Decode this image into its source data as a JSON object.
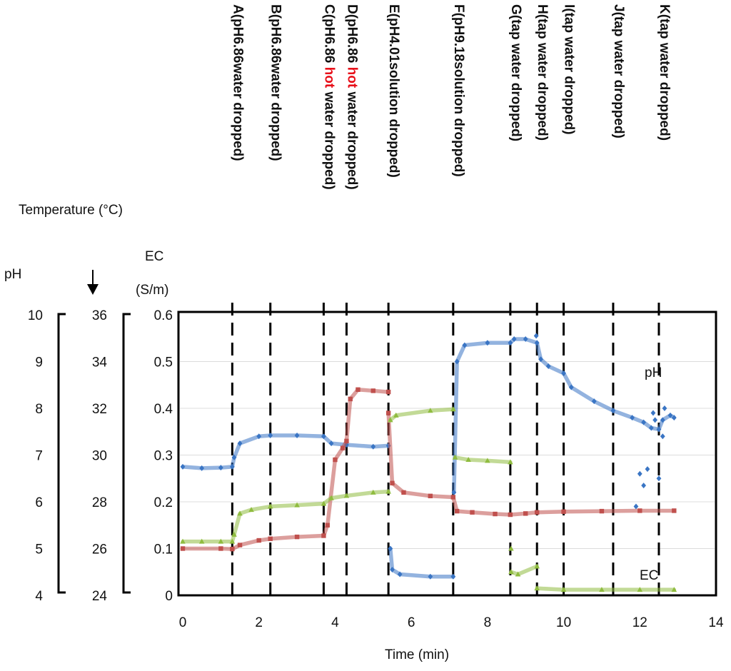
{
  "chart_data": {
    "type": "scatter",
    "xlabel": "Time (min)",
    "xlim": [
      0,
      14
    ],
    "x_ticks": [
      "0",
      "2",
      "4",
      "6",
      "8",
      "10",
      "12",
      "14"
    ],
    "axes": {
      "ph": {
        "label": "pH",
        "range": [
          4,
          10
        ],
        "ticks": [
          "4",
          "5",
          "6",
          "7",
          "8",
          "9",
          "10"
        ]
      },
      "temperature": {
        "label": "Temperature (°C)",
        "range": [
          24,
          36
        ],
        "ticks": [
          "24",
          "26",
          "28",
          "30",
          "32",
          "34",
          "36"
        ]
      },
      "ec": {
        "label_line1": "EC",
        "label_line2": "(S/m)",
        "range": [
          0,
          0.6
        ],
        "ticks": [
          "0",
          "0.1",
          "0.2",
          "0.3",
          "0.4",
          "0.5",
          "0.6"
        ]
      }
    },
    "series_labels": {
      "ph": "pH",
      "ec": "EC"
    },
    "events": [
      {
        "t": 1.3,
        "id": "A",
        "text": "A(pH6.86water dropped)"
      },
      {
        "t": 2.3,
        "id": "B",
        "text": "B(pH6.86water dropped)"
      },
      {
        "t": 3.7,
        "id": "C",
        "pre": "C(pH6.86 ",
        "hot": "hot",
        "post": " water dropped)"
      },
      {
        "t": 4.3,
        "id": "D",
        "pre": "D(pH6.86 ",
        "hot": "hot",
        "post": " water dropped)"
      },
      {
        "t": 5.4,
        "id": "E",
        "text": "E(pH4.01solution dropped)"
      },
      {
        "t": 7.1,
        "id": "F",
        "text": "F(pH9.18solution dropped)"
      },
      {
        "t": 8.6,
        "id": "G",
        "text": "G(tap water dropped)"
      },
      {
        "t": 9.3,
        "id": "H",
        "text": "H(tap water dropped)"
      },
      {
        "t": 10.0,
        "id": "I",
        "text": "I(tap water dropped)"
      },
      {
        "t": 11.3,
        "id": "J",
        "text": "J(tap water dropped)"
      },
      {
        "t": 12.5,
        "id": "K",
        "text": "K(tap water dropped)"
      }
    ],
    "series": [
      {
        "name": "pH",
        "axis": "ph",
        "color": "#3a75c4",
        "marker": "diamond",
        "segments": [
          [
            [
              0,
              6.75
            ],
            [
              0.5,
              6.72
            ],
            [
              1.0,
              6.73
            ],
            [
              1.3,
              6.75
            ],
            [
              1.35,
              6.95
            ],
            [
              1.5,
              7.25
            ],
            [
              2.0,
              7.4
            ],
            [
              2.3,
              7.42
            ],
            [
              3.0,
              7.42
            ],
            [
              3.7,
              7.4
            ],
            [
              3.9,
              7.25
            ],
            [
              4.3,
              7.22
            ],
            [
              5.0,
              7.18
            ],
            [
              5.4,
              7.2
            ]
          ],
          [
            [
              5.45,
              5.0
            ],
            [
              5.5,
              4.55
            ],
            [
              5.7,
              4.45
            ],
            [
              6.5,
              4.4
            ],
            [
              7.1,
              4.4
            ]
          ],
          [
            [
              7.12,
              6.2
            ],
            [
              7.2,
              9.0
            ],
            [
              7.4,
              9.35
            ],
            [
              8.0,
              9.4
            ],
            [
              8.6,
              9.4
            ],
            [
              8.7,
              9.48
            ],
            [
              9.0,
              9.48
            ],
            [
              9.3,
              9.4
            ],
            [
              9.4,
              9.05
            ],
            [
              9.6,
              8.9
            ],
            [
              10.0,
              8.75
            ],
            [
              10.2,
              8.45
            ],
            [
              10.8,
              8.15
            ],
            [
              11.3,
              7.95
            ],
            [
              11.8,
              7.8
            ],
            [
              12.1,
              7.7
            ],
            [
              12.3,
              7.58
            ],
            [
              12.5,
              7.55
            ],
            [
              12.6,
              7.75
            ],
            [
              12.8,
              7.85
            ],
            [
              12.9,
              7.8
            ]
          ]
        ],
        "scatter": [
          [
            9.28,
            9.55
          ],
          [
            11.9,
            5.9
          ],
          [
            12.0,
            6.6
          ],
          [
            12.1,
            6.35
          ],
          [
            12.2,
            6.7
          ],
          [
            12.35,
            7.9
          ],
          [
            12.4,
            7.75
          ],
          [
            12.5,
            6.5
          ],
          [
            12.6,
            7.4
          ],
          [
            12.65,
            8.0
          ]
        ]
      },
      {
        "name": "Temperature",
        "axis": "temperature",
        "color": "#c0504d",
        "marker": "square",
        "segments": [
          [
            [
              0,
              26.0
            ],
            [
              1.0,
              26.0
            ],
            [
              1.3,
              25.98
            ],
            [
              1.5,
              26.15
            ],
            [
              2.0,
              26.35
            ],
            [
              2.3,
              26.42
            ],
            [
              3.0,
              26.5
            ],
            [
              3.7,
              26.55
            ],
            [
              3.8,
              27.0
            ],
            [
              4.0,
              29.8
            ],
            [
              4.2,
              30.3
            ],
            [
              4.3,
              30.6
            ],
            [
              4.4,
              32.4
            ],
            [
              4.6,
              32.8
            ],
            [
              5.0,
              32.75
            ],
            [
              5.4,
              32.7
            ]
          ],
          [
            [
              5.4,
              31.8
            ],
            [
              5.5,
              28.8
            ],
            [
              5.8,
              28.4
            ],
            [
              6.5,
              28.25
            ],
            [
              7.1,
              28.2
            ],
            [
              7.2,
              27.6
            ],
            [
              7.6,
              27.55
            ],
            [
              8.2,
              27.48
            ],
            [
              8.6,
              27.45
            ],
            [
              9.0,
              27.5
            ],
            [
              9.3,
              27.55
            ],
            [
              10.0,
              27.58
            ],
            [
              11.0,
              27.6
            ],
            [
              12.0,
              27.62
            ],
            [
              12.9,
              27.62
            ]
          ]
        ],
        "scatter": []
      },
      {
        "name": "EC",
        "axis": "ec",
        "color": "#8fbc3f",
        "marker": "triangle",
        "segments": [
          [
            [
              0,
              0.115
            ],
            [
              0.5,
              0.115
            ],
            [
              1.0,
              0.115
            ],
            [
              1.3,
              0.115
            ],
            [
              1.35,
              0.13
            ],
            [
              1.5,
              0.175
            ],
            [
              1.8,
              0.183
            ],
            [
              2.3,
              0.19
            ],
            [
              3.0,
              0.193
            ],
            [
              3.7,
              0.196
            ],
            [
              3.9,
              0.208
            ],
            [
              4.3,
              0.213
            ],
            [
              5.0,
              0.22
            ],
            [
              5.4,
              0.222
            ]
          ],
          [
            [
              5.45,
              0.375
            ],
            [
              5.6,
              0.385
            ],
            [
              6.5,
              0.395
            ],
            [
              7.1,
              0.398
            ]
          ],
          [
            [
              7.15,
              0.295
            ],
            [
              7.5,
              0.29
            ],
            [
              8.0,
              0.288
            ],
            [
              8.6,
              0.285
            ]
          ],
          [
            [
              8.62,
              0.05
            ],
            [
              8.8,
              0.045
            ],
            [
              9.3,
              0.062
            ]
          ],
          [
            [
              9.3,
              0.015
            ],
            [
              10.0,
              0.012
            ],
            [
              11.0,
              0.012
            ],
            [
              12.0,
              0.012
            ],
            [
              12.9,
              0.012
            ]
          ]
        ],
        "scatter": [
          [
            8.62,
            0.1
          ]
        ]
      }
    ]
  }
}
